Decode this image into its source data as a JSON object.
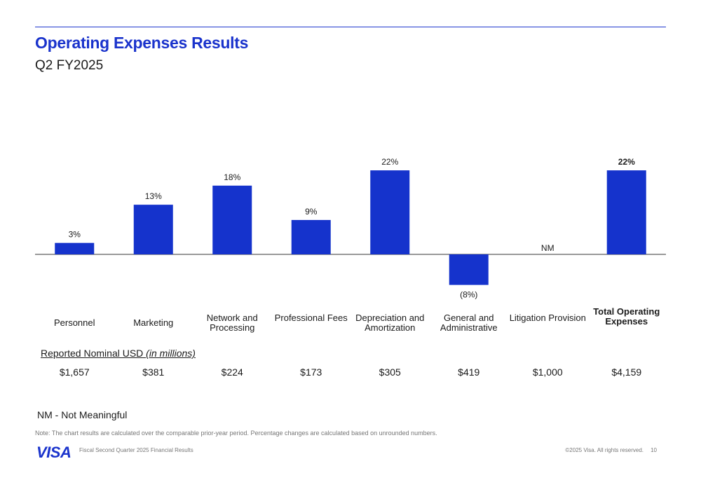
{
  "header": {
    "title": "Operating Expenses Results",
    "subtitle": "Q2 FY2025"
  },
  "colors": {
    "accent": "#1a33cc",
    "bar": "#1533cc"
  },
  "chart_data": {
    "type": "bar",
    "categories": [
      "Personnel",
      "Marketing",
      "Network and Processing",
      "Professional Fees",
      "Depreciation and Amortization",
      "General and Administrative",
      "Litigation Provision",
      "Total Operating Expenses"
    ],
    "values": [
      3,
      13,
      18,
      9,
      22,
      -8,
      null,
      22
    ],
    "data_labels": [
      "3%",
      "13%",
      "18%",
      "9%",
      "22%",
      "(8%)",
      "NM",
      "22%"
    ],
    "unit": "%",
    "ylim": [
      -8,
      22
    ],
    "grid": false,
    "legend": "none"
  },
  "table": {
    "caption_main": "Reported Nominal USD ",
    "caption_italic": "(in millions)",
    "values": [
      "$1,657",
      "$381",
      "$224",
      "$173",
      "$305",
      "$419",
      "$1,000",
      "$4,159"
    ]
  },
  "nm_note": "NM - Not Meaningful",
  "note": "Note: The chart results are calculated over the comparable prior-year period. Percentage changes are calculated based on unrounded numbers.",
  "footer": {
    "logo": "VISA",
    "left": "Fiscal Second Quarter 2025 Financial Results",
    "right": "©2025 Visa. All rights reserved.",
    "page": "10"
  }
}
